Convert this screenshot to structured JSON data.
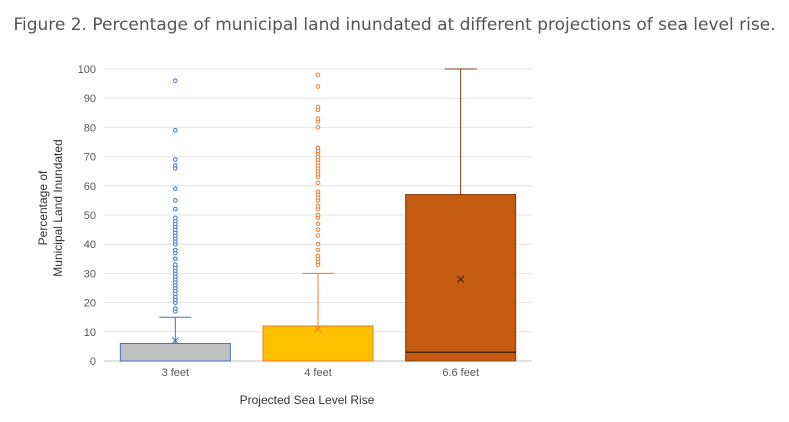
{
  "chart_data": {
    "type": "box",
    "title": "Figure 2. Percentage of municipal land inundated at different projections of sea level rise.",
    "xlabel": "Projected Sea Level Rise",
    "ylabel_lines": [
      "Percentage of",
      "Municipal Land Inundated"
    ],
    "ylim": [
      0,
      100
    ],
    "yticks": [
      0,
      10,
      20,
      30,
      40,
      50,
      60,
      70,
      80,
      90,
      100
    ],
    "grid": true,
    "categories": [
      "3 feet",
      "4 feet",
      "6.6 feet"
    ],
    "boxes": [
      {
        "category": "3 feet",
        "color": "#BFBFBF",
        "edge": "#4472C4",
        "min": 0,
        "q1": 0,
        "median": 0,
        "q3": 6,
        "whisker_high": 15,
        "mean": 7,
        "outliers": [
          17,
          18,
          20,
          21,
          22,
          23,
          24,
          25,
          26,
          27,
          28,
          29,
          30,
          31,
          32,
          33,
          35,
          37,
          38,
          40,
          41,
          42,
          43,
          44,
          45,
          46,
          47,
          48,
          49,
          52,
          55,
          59,
          66,
          67,
          69,
          79,
          96
        ]
      },
      {
        "category": "4 feet",
        "color": "#FFC000",
        "edge": "#ED7D31",
        "min": 0,
        "q1": 0,
        "median": 0,
        "q3": 12,
        "whisker_high": 30,
        "mean": 11,
        "outliers": [
          33,
          34,
          35,
          36,
          38,
          40,
          43,
          45,
          47,
          49,
          50,
          52,
          53,
          55,
          56,
          57,
          58,
          61,
          63,
          64,
          65,
          66,
          67,
          68,
          69,
          70,
          71,
          72,
          73,
          80,
          82,
          83,
          86,
          87,
          94,
          98
        ]
      },
      {
        "category": "6.6 feet",
        "color": "#C55A11",
        "edge": "#843C0C",
        "min": 0,
        "q1": 0,
        "median": 3,
        "q3": 57,
        "whisker_high": 100,
        "mean": 28,
        "outliers": []
      }
    ]
  }
}
